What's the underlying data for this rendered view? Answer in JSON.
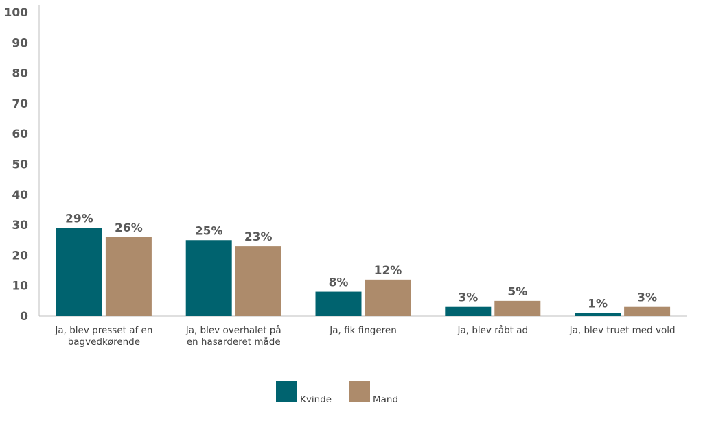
{
  "chart_data": {
    "type": "bar",
    "categories": [
      [
        "Ja, blev presset af en",
        "bagvedkørende"
      ],
      [
        "Ja, blev overhalet på",
        "en hasarderet måde"
      ],
      [
        "Ja, fik fingeren"
      ],
      [
        "Ja, blev råbt ad"
      ],
      [
        "Ja, blev truet med vold"
      ]
    ],
    "series": [
      {
        "name": "Kvinde",
        "color": "#00636f",
        "values": [
          29,
          25,
          8,
          3,
          1
        ],
        "labels": [
          "29%",
          "25%",
          "8%",
          "3%",
          "1%"
        ]
      },
      {
        "name": "Mand",
        "color": "#ad8b6b",
        "values": [
          26,
          23,
          12,
          5,
          3
        ],
        "labels": [
          "26%",
          "23%",
          "12%",
          "5%",
          "3%"
        ]
      }
    ],
    "yticks": [
      "0",
      "10",
      "20",
      "30",
      "40",
      "50",
      "60",
      "70",
      "80",
      "90",
      "100"
    ],
    "ylim": [
      0,
      100
    ],
    "grid": false,
    "legend_position": "bottom"
  }
}
